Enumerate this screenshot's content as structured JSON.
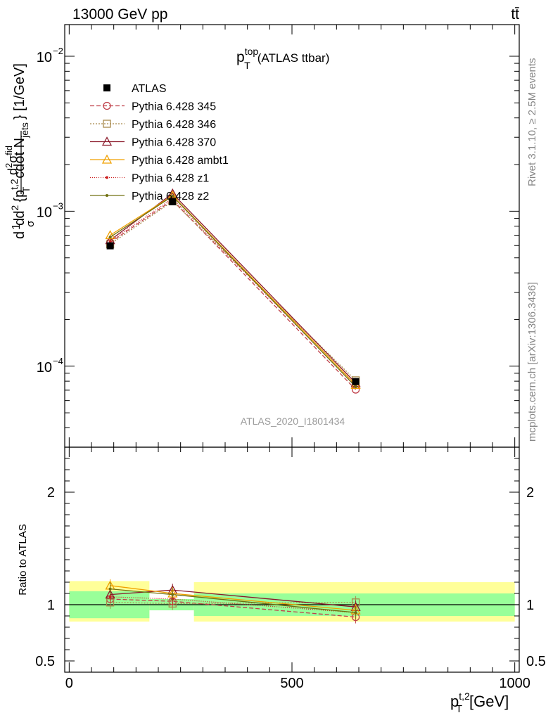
{
  "header": {
    "left": "13000 GeV pp",
    "right": "tt̄"
  },
  "side_labels": {
    "rivet": "Rivet 3.1.10, ≥ 2.5M events",
    "mcplots": "mcplots.cern.ch [arXiv:1306.3436]"
  },
  "watermark": "ATLAS_2020_I1801434",
  "colors": {
    "ratio_band_inner": "#99ff99",
    "ratio_band_outer": "#ffff99"
  },
  "chart_data": [
    {
      "type": "line",
      "panel": "main",
      "title_main": "p",
      "title_sup": "top",
      "title_sub": "T",
      "title_suffix": "(ATLAS ttbar)",
      "ylabel": "d²σ / σ d² {p_T^{t,2} cdot N_jets} [1/GeV]",
      "ylabel_parts": {
        "a": "d",
        "b": "1",
        "c": "d",
        "d": "σ",
        "e": "d",
        "f": "2",
        "g": "{p",
        "h": "t,2",
        "i": "T",
        "j": "cdot N",
        "k": "jets",
        "l": "} [1/GeV]",
        "m": "d",
        "n": "2",
        "o": "σ",
        "p": "fid"
      },
      "yscale": "log",
      "xlim": [
        -10,
        1010
      ],
      "ylim": [
        3e-05,
        0.016
      ],
      "y_ticks": [
        {
          "value": 0.01,
          "base": "10",
          "exp": "−2"
        },
        {
          "value": 0.001,
          "base": "10",
          "exp": "−3"
        },
        {
          "value": 0.0001,
          "base": "10",
          "exp": "−4"
        }
      ],
      "x": [
        92,
        232,
        643
      ],
      "data_series": {
        "name": "ATLAS",
        "values": [
          0.000598,
          0.00115,
          7.95e-05
        ]
      },
      "series": [
        {
          "name": "Pythia 6.428 345",
          "color": "#c0404a",
          "dash": "6,3",
          "marker": "circle-open",
          "values": [
            0.000628,
            0.00118,
            7.06e-05
          ]
        },
        {
          "name": "Pythia 6.428 346",
          "color": "#a8894a",
          "dash": "2,2",
          "marker": "square-open",
          "values": [
            0.000612,
            0.00116,
            8.1e-05
          ]
        },
        {
          "name": "Pythia 6.428 370",
          "color": "#8b1a2b",
          "dash": "",
          "marker": "triangle-open",
          "values": [
            0.00065,
            0.0013,
            7.78e-05
          ]
        },
        {
          "name": "Pythia 6.428 ambt1",
          "color": "#f0a000",
          "dash": "",
          "marker": "triangle-open",
          "values": [
            0.0007,
            0.00126,
            7.57e-05
          ]
        },
        {
          "name": "Pythia 6.428 z1",
          "color": "#cc2020",
          "dash": "1,2",
          "marker": "dot",
          "values": [
            0.00064,
            0.00121,
            7.42e-05
          ]
        },
        {
          "name": "Pythia 6.428 z2",
          "color": "#707010",
          "dash": "",
          "marker": "dot",
          "values": [
            0.00068,
            0.00125,
            7.36e-05
          ]
        }
      ]
    },
    {
      "type": "line",
      "panel": "ratio",
      "ylabel": "Ratio to ATLAS",
      "xlabel_main": "p",
      "xlabel_sup": "t,2",
      "xlabel_sub": "T",
      "xlabel_suffix": "[GeV]",
      "xlim": [
        -10,
        1010
      ],
      "ylim": [
        0.4,
        2.4
      ],
      "x_ticks": [
        {
          "value": 0,
          "label": "0"
        },
        {
          "value": 500,
          "label": "500"
        },
        {
          "value": 1000,
          "label": "1000"
        }
      ],
      "y_ticks": [
        {
          "value": 0.5,
          "label": "0.5"
        },
        {
          "value": 1,
          "label": "1"
        },
        {
          "value": 2,
          "label": "2"
        }
      ],
      "bins": [
        [
          0,
          180
        ],
        [
          180,
          280
        ],
        [
          280,
          1000
        ]
      ],
      "band_inner": [
        [
          0.88,
          1.12
        ],
        [
          0.95,
          1.05
        ],
        [
          0.9,
          1.1
        ]
      ],
      "band_outer": [
        [
          0.85,
          1.21
        ],
        [
          0.95,
          1.05
        ],
        [
          0.85,
          1.2
        ]
      ],
      "x": [
        92,
        232,
        643
      ],
      "series": [
        {
          "name": "Pythia 6.428 345",
          "values": [
            1.05,
            1.03,
            0.89
          ]
        },
        {
          "name": "Pythia 6.428 346",
          "values": [
            1.02,
            1.01,
            1.02
          ]
        },
        {
          "name": "Pythia 6.428 370",
          "values": [
            1.09,
            1.13,
            0.98
          ]
        },
        {
          "name": "Pythia 6.428 ambt1",
          "values": [
            1.17,
            1.1,
            0.95
          ]
        },
        {
          "name": "Pythia 6.428 z1",
          "values": [
            1.07,
            1.05,
            0.93
          ]
        },
        {
          "name": "Pythia 6.428 z2",
          "values": [
            1.14,
            1.09,
            0.93
          ]
        }
      ]
    }
  ]
}
